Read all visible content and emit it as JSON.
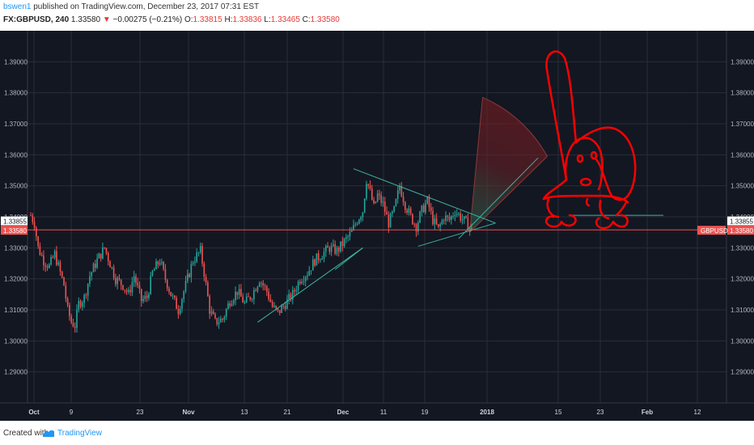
{
  "header": {
    "user": "bswen1",
    "published_text": " published on TradingView.com, December 23, 2017 07:31 EST",
    "symbol_label": "FX:GBPUSD, 240",
    "last_price": "1.33580",
    "change": "−0.00275 (−0.21%)",
    "o_label": "O:",
    "o_value": "1.33815",
    "h_label": "H:",
    "h_value": "1.33836",
    "l_label": "L:",
    "l_value": "1.33465",
    "c_label": "C:",
    "c_value": "1.33580"
  },
  "footer": {
    "created_with": "Created with",
    "brand": "TradingView"
  },
  "colors": {
    "background": "#131722",
    "grid": "#2a2e39",
    "up": "#26a69a",
    "down": "#ef5350",
    "last_price_line": "#ef5350",
    "drawing_red": "#ff0000",
    "trendline": "#3cb4a0"
  },
  "chart_data": {
    "type": "candlestick",
    "symbol": "GBPUSD",
    "timeframe": "240",
    "ylim": [
      1.28,
      1.4
    ],
    "y_ticks": [
      "1.29000",
      "1.30000",
      "1.31000",
      "1.32000",
      "1.33000",
      "1.34000",
      "1.35000",
      "1.36000",
      "1.37000",
      "1.38000",
      "1.39000"
    ],
    "x_ticks": [
      "Oct",
      "9",
      "23",
      "Nov",
      "13",
      "21",
      "Dec",
      "11",
      "19",
      "2018",
      "15",
      "23",
      "Feb",
      "12"
    ],
    "last_price": "1.33580",
    "second_price": "1.33855",
    "last_price_tag": "GBPUSD",
    "close_path": [
      [
        0,
        1.3405
      ],
      [
        2,
        1.338
      ],
      [
        4,
        1.33
      ],
      [
        7,
        1.326
      ],
      [
        10,
        1.324
      ],
      [
        13,
        1.328
      ],
      [
        16,
        1.322
      ],
      [
        18,
        1.318
      ],
      [
        20,
        1.31
      ],
      [
        22,
        1.306
      ],
      [
        24,
        1.305
      ],
      [
        26,
        1.312
      ],
      [
        29,
        1.314
      ],
      [
        32,
        1.321
      ],
      [
        36,
        1.326
      ],
      [
        40,
        1.33
      ],
      [
        43,
        1.325
      ],
      [
        46,
        1.32
      ],
      [
        50,
        1.318
      ],
      [
        53,
        1.315
      ],
      [
        56,
        1.321
      ],
      [
        60,
        1.313
      ],
      [
        63,
        1.314
      ],
      [
        66,
        1.322
      ],
      [
        70,
        1.326
      ],
      [
        73,
        1.32
      ],
      [
        76,
        1.315
      ],
      [
        80,
        1.31
      ],
      [
        84,
        1.318
      ],
      [
        88,
        1.326
      ],
      [
        92,
        1.329
      ],
      [
        94,
        1.322
      ],
      [
        97,
        1.31
      ],
      [
        100,
        1.306
      ],
      [
        104,
        1.307
      ],
      [
        108,
        1.313
      ],
      [
        112,
        1.316
      ],
      [
        116,
        1.312
      ],
      [
        120,
        1.315
      ],
      [
        124,
        1.32
      ],
      [
        128,
        1.316
      ],
      [
        131,
        1.311
      ],
      [
        134,
        1.309
      ],
      [
        138,
        1.312
      ],
      [
        142,
        1.315
      ],
      [
        146,
        1.32
      ],
      [
        150,
        1.322
      ],
      [
        154,
        1.326
      ],
      [
        158,
        1.328
      ],
      [
        162,
        1.33
      ],
      [
        166,
        1.329
      ],
      [
        170,
        1.332
      ],
      [
        174,
        1.335
      ],
      [
        177,
        1.339
      ],
      [
        180,
        1.342
      ],
      [
        182,
        1.352
      ],
      [
        184,
        1.348
      ],
      [
        186,
        1.343
      ],
      [
        188,
        1.347
      ],
      [
        191,
        1.344
      ],
      [
        194,
        1.338
      ],
      [
        197,
        1.342
      ],
      [
        200,
        1.35
      ],
      [
        203,
        1.344
      ],
      [
        206,
        1.34
      ],
      [
        209,
        1.337
      ],
      [
        212,
        1.342
      ],
      [
        215,
        1.345
      ],
      [
        218,
        1.339
      ],
      [
        221,
        1.336
      ],
      [
        224,
        1.34
      ],
      [
        227,
        1.339
      ],
      [
        230,
        1.342
      ],
      [
        233,
        1.34
      ],
      [
        236,
        1.338
      ],
      [
        239,
        1.3358
      ]
    ],
    "drawings": [
      {
        "kind": "trendline",
        "from": [
          123,
          1.306
        ],
        "to": [
          180,
          1.33
        ]
      },
      {
        "kind": "trendline",
        "from": [
          165,
          1.323
        ],
        "to": [
          180,
          1.33
        ]
      },
      {
        "kind": "trendline",
        "from": [
          175,
          1.3555
        ],
        "to": [
          252,
          1.338
        ]
      },
      {
        "kind": "trendline",
        "from": [
          210,
          1.3305
        ],
        "to": [
          252,
          1.338
        ]
      },
      {
        "kind": "trendline",
        "from": [
          232,
          1.333
        ],
        "to": [
          275,
          1.359
        ]
      },
      {
        "kind": "trendline",
        "from": [
          292,
          1.3405
        ],
        "to": [
          343,
          1.3405
        ]
      },
      {
        "kind": "sector",
        "apex": [
          238,
          1.335
        ],
        "p1": [
          245,
          1.3785
        ],
        "p2": [
          280,
          1.3595
        ]
      },
      {
        "kind": "hand-drawn",
        "subject": "dog face with long ears"
      }
    ]
  }
}
